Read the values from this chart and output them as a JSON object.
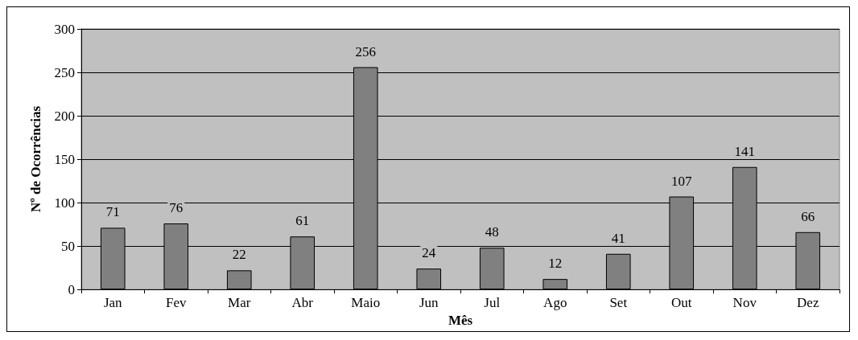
{
  "chart_data": {
    "type": "bar",
    "xlabel": "Mês",
    "ylabel": "Nº de Ocorrências",
    "categories": [
      "Jan",
      "Fev",
      "Mar",
      "Abr",
      "Maio",
      "Jun",
      "Jul",
      "Ago",
      "Set",
      "Out",
      "Nov",
      "Dez"
    ],
    "values": [
      71,
      76,
      22,
      61,
      256,
      24,
      48,
      12,
      41,
      107,
      141,
      66
    ],
    "color": "#808080",
    "ylim": [
      0,
      300
    ],
    "yticks": [
      0,
      50,
      100,
      150,
      200,
      250,
      300
    ],
    "grid": "y",
    "data_labels": true
  }
}
